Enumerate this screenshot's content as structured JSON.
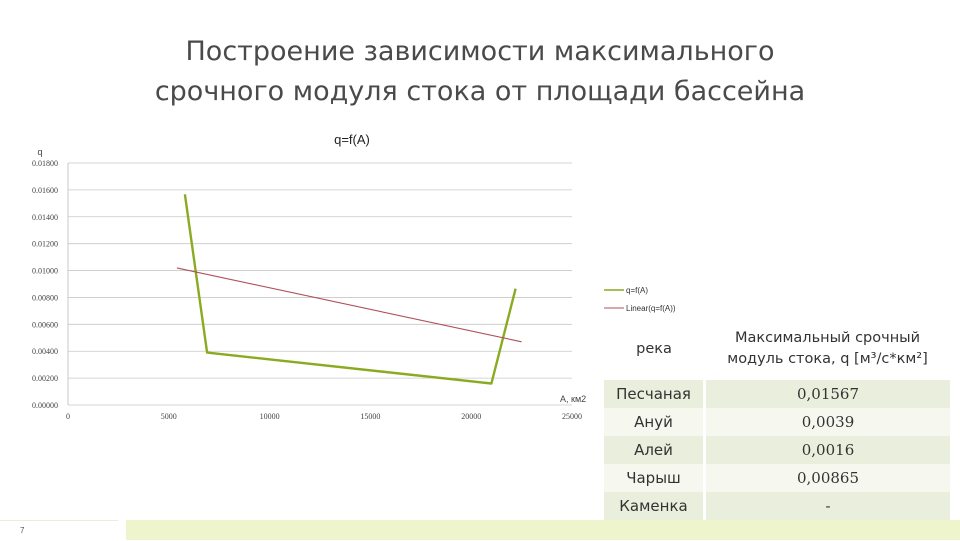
{
  "slide": {
    "title_line1": "Построение зависимости максимального",
    "title_line2": "срочного модуля стока от площади бассейна",
    "page_number": "7",
    "accent_color": "#8aaa22",
    "trend_color": "#b0505a"
  },
  "chart_data": {
    "type": "line",
    "title": "q=f(A)",
    "ylabel": "q",
    "xlabel": "A, км2",
    "xlim": [
      0,
      25000
    ],
    "ylim": [
      0,
      0.018
    ],
    "x_ticks": [
      "0",
      "5000",
      "10000",
      "15000",
      "20000",
      "25000"
    ],
    "y_ticks": [
      "0.00000",
      "0.00200",
      "0.00400",
      "0.00600",
      "0.00800",
      "0.01000",
      "0.01200",
      "0.01400",
      "0.01600",
      "0.01800"
    ],
    "grid": true,
    "legend_position": "right",
    "series": [
      {
        "name": "q=f(A)",
        "x": [
          5800,
          6900,
          21000,
          22200
        ],
        "y": [
          0.01567,
          0.0039,
          0.0016,
          0.00865
        ]
      },
      {
        "name": "Linear(q=f(A))",
        "x": [
          5400,
          22500
        ],
        "y": [
          0.0102,
          0.0047
        ]
      }
    ]
  },
  "table": {
    "headers": [
      "река",
      "Максимальный срочный модуль стока, q [м³/с*км²]"
    ],
    "rows": [
      [
        "Песчаная",
        "0,01567"
      ],
      [
        "Ануй",
        "0,0039"
      ],
      [
        "Алей",
        "0,0016"
      ],
      [
        "Чарыш",
        "0,00865"
      ],
      [
        "Каменка",
        "-"
      ]
    ]
  }
}
